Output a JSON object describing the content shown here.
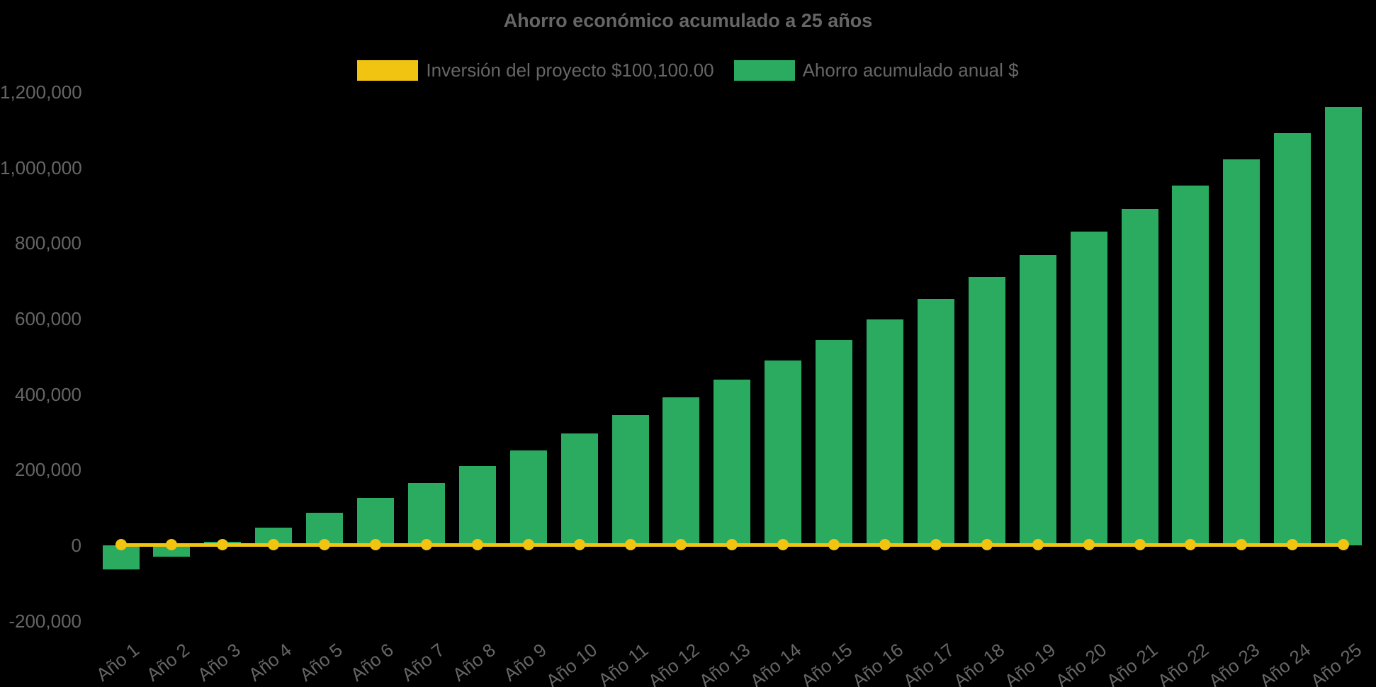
{
  "colors": {
    "background": "#000000",
    "text": "#666666",
    "bar_green": "#2aab60",
    "line_yellow": "#f0c411"
  },
  "chart_data": {
    "type": "bar",
    "title": "Ahorro económico acumulado a 25 años",
    "legend_position": "top",
    "grid": false,
    "ylim": [
      -200000,
      1200000
    ],
    "ytick_values": [
      -200000,
      0,
      200000,
      400000,
      600000,
      800000,
      1000000,
      1200000
    ],
    "ytick_labels": [
      "-200,000",
      "0",
      "200,000",
      "400,000",
      "600,000",
      "800,000",
      "1,000,000",
      "1,200,000"
    ],
    "categories": [
      "Año 1",
      "Año 2",
      "Año 3",
      "Año 4",
      "Año 5",
      "Año 6",
      "Año 7",
      "Año 8",
      "Año 9",
      "Año 10",
      "Año 11",
      "Año 12",
      "Año 13",
      "Año 14",
      "Año 15",
      "Año 16",
      "Año 17",
      "Año 18",
      "Año 19",
      "Año 20",
      "Año 21",
      "Año 22",
      "Año 23",
      "Año 24",
      "Año 25"
    ],
    "series": [
      {
        "name": "Inversión del proyecto $100,100.00",
        "type": "line",
        "color": "#f0c411",
        "marker": "circle",
        "investment_amount": 100100,
        "plotted_at_value": 0
      },
      {
        "name": "Ahorro acumulado anual $",
        "type": "bar",
        "color": "#2aab60",
        "values": [
          -64000,
          -30000,
          9000,
          47000,
          86000,
          125000,
          165000,
          209000,
          251000,
          297000,
          344000,
          391000,
          439000,
          490000,
          544000,
          598000,
          652000,
          711000,
          768000,
          830000,
          891000,
          953000,
          1022000,
          1090000,
          1160000
        ]
      }
    ]
  }
}
